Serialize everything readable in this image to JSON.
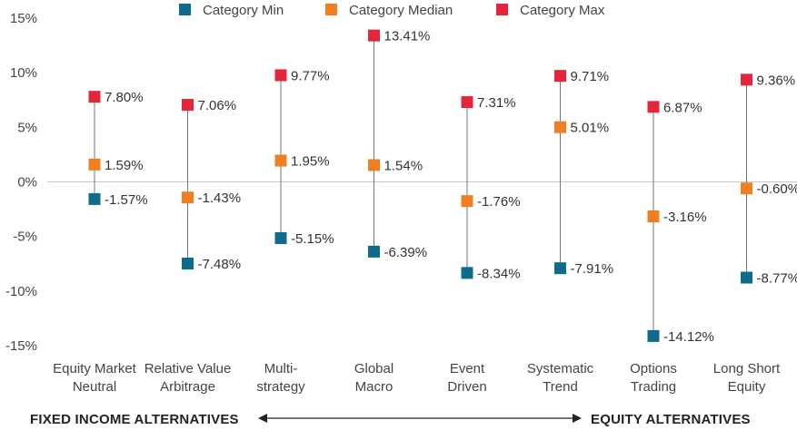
{
  "chart_data": {
    "type": "range",
    "categories": [
      [
        "Equity Market",
        "Neutral"
      ],
      [
        "Relative Value",
        "Arbitrage"
      ],
      [
        "Multi-",
        "strategy"
      ],
      [
        "Global",
        "Macro"
      ],
      [
        "Event",
        "Driven"
      ],
      [
        "Systematic",
        "Trend"
      ],
      [
        "Options",
        "Trading"
      ],
      [
        "Long Short",
        "Equity"
      ]
    ],
    "series": [
      {
        "name": "Category Min",
        "color": "#0e6b8c",
        "values": [
          -1.57,
          -7.48,
          -5.15,
          -6.39,
          -8.34,
          -7.91,
          -14.12,
          -8.77
        ],
        "labels": [
          "-1.57%",
          "-7.48%",
          "-5.15%",
          "-6.39%",
          "-8.34%",
          "-7.91%",
          "-14.12%",
          "-8.77%"
        ]
      },
      {
        "name": "Category Median",
        "color": "#f07f22",
        "values": [
          1.59,
          -1.43,
          1.95,
          1.54,
          -1.76,
          5.01,
          -3.16,
          -0.6
        ],
        "labels": [
          "1.59%",
          "-1.43%",
          "1.95%",
          "1.54%",
          "-1.76%",
          "5.01%",
          "-3.16%",
          "-0.60%"
        ]
      },
      {
        "name": "Category Max",
        "color": "#e3263a",
        "values": [
          7.8,
          7.06,
          9.77,
          13.41,
          7.31,
          9.71,
          6.87,
          9.36
        ],
        "labels": [
          "7.80%",
          "7.06%",
          "9.77%",
          "13.41%",
          "7.31%",
          "9.71%",
          "6.87%",
          "9.36%"
        ]
      }
    ],
    "yticks": [
      "15%",
      "10%",
      "5%",
      "0%",
      "-5%",
      "-10%",
      "-15%"
    ],
    "ytick_values": [
      15,
      10,
      5,
      0,
      -5,
      -10,
      -15
    ],
    "ylim": [
      -15,
      15
    ],
    "legend_position": "top",
    "footer": {
      "left": "FIXED INCOME ALTERNATIVES",
      "right": "EQUITY ALTERNATIVES"
    }
  }
}
